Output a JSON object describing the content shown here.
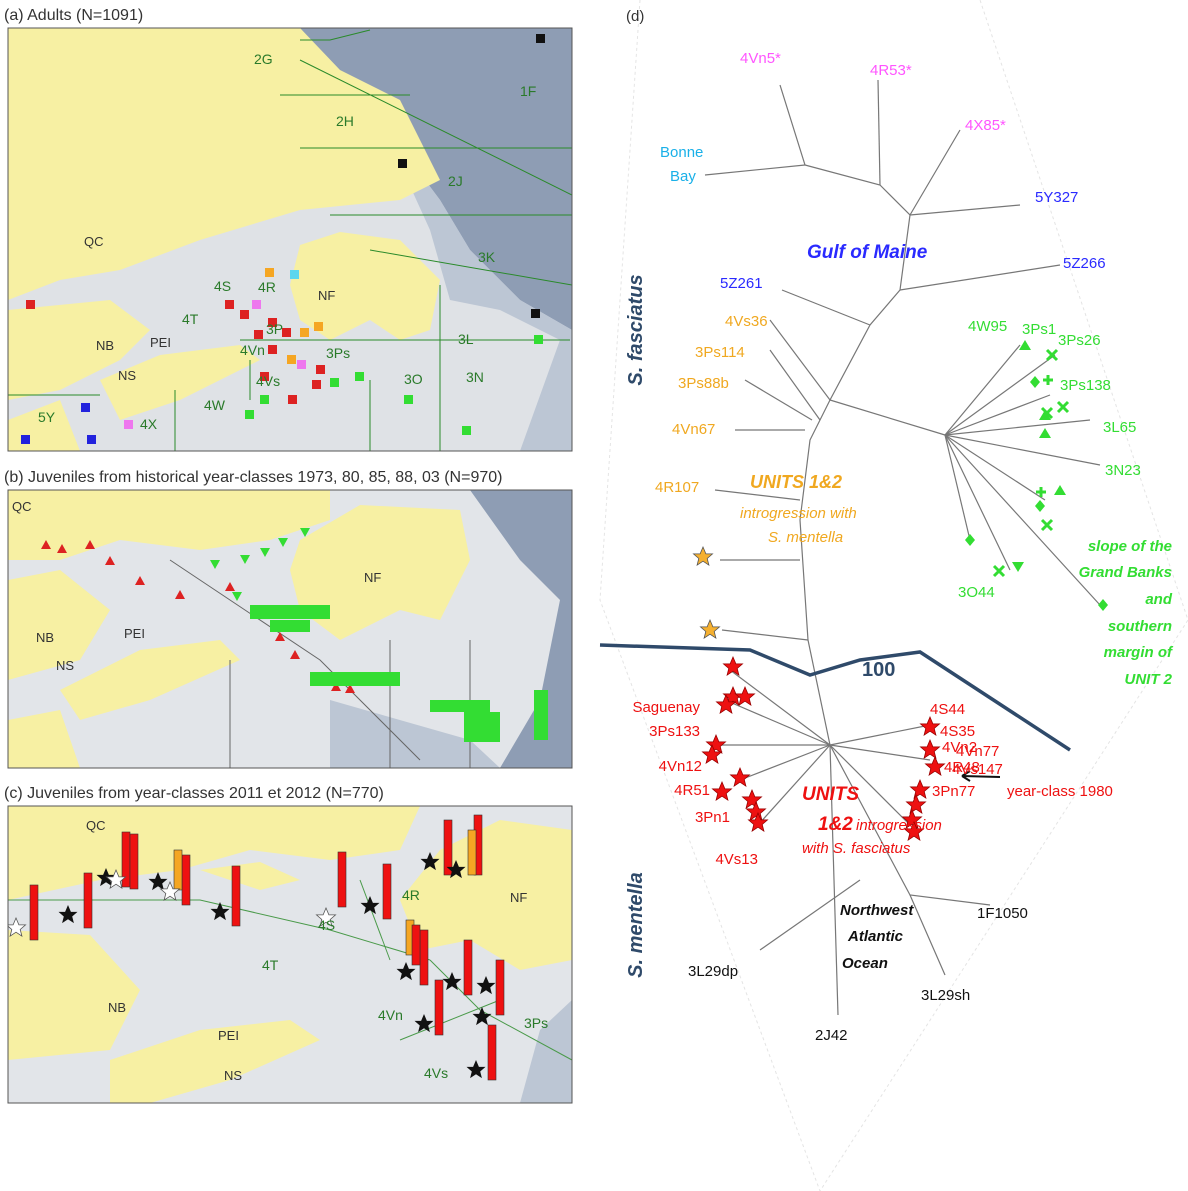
{
  "panel_a": {
    "title": "(a) Adults (N=1091)",
    "labels": {
      "g2": "2G",
      "f1": "1F",
      "h2": "2H",
      "j2": "2J",
      "qc": "QC",
      "k3": "3K",
      "s4": "4S",
      "r4": "4R",
      "nf": "NF",
      "t4": "4T",
      "pn3": "3P",
      "vn4": "4Vn",
      "ps3": "3Ps",
      "l3": "3L",
      "nb": "NB",
      "pei": "PEI",
      "ns": "NS",
      "vs4": "4Vs",
      "o3": "3O",
      "n3": "3N",
      "w4": "4W",
      "y5": "5Y",
      "x4": "4X"
    }
  },
  "panel_b": {
    "title": "(b) Juveniles from historical year-classes  1973, 80, 85, 88, 03 (N=970)",
    "labels": {
      "qc": "QC",
      "nf": "NF",
      "nb": "NB",
      "pei": "PEI",
      "ns": "NS"
    }
  },
  "panel_c": {
    "title": "(c) Juveniles from year-classes 2011 et 2012 (N=770)",
    "labels": {
      "qc": "QC",
      "r4": "4R",
      "nf": "NF",
      "s4": "4S",
      "t4": "4T",
      "nb": "NB",
      "pei": "PEI",
      "vn4": "4Vn",
      "ps3": "3Ps",
      "ns": "NS",
      "vs4": "4Vs"
    }
  },
  "panel_d": {
    "title": "(d)",
    "pink": [
      "4Vn5*",
      "4R53*",
      "4X85*"
    ],
    "bonne_bay": [
      "Bonne",
      "Bay"
    ],
    "blue": [
      "5Y327",
      "5Z266",
      "5Z261"
    ],
    "gulf_of_maine": "Gulf of Maine",
    "orange": [
      "4Vs36",
      "3Ps114",
      "3Ps88b",
      "4Vn67",
      "4R107"
    ],
    "units_orange": "UNITS 1&2",
    "introgression_mentella": [
      "introgression with",
      "S. mentella"
    ],
    "green": [
      "4W95",
      "3Ps1",
      "3Ps26",
      "3Ps138",
      "3L65",
      "3N23",
      "3O44"
    ],
    "slope": [
      "slope of the",
      "Grand Banks",
      "and",
      "southern",
      "margin of",
      "UNIT 2"
    ],
    "s_fasciatus": "S. fasciatus",
    "s_mentella": "S. mentella",
    "bootstrap": "100",
    "red_left": [
      "Saguenay",
      "3Ps133",
      "4Vn12",
      "4R51",
      "3Pn1",
      "4Vs13"
    ],
    "red_right": [
      "4S44",
      "4S35",
      "4Vn2",
      "4R48",
      "4Vn77",
      "4Vs147",
      "3Pn77"
    ],
    "year_class": "year-class 1980",
    "units_red": [
      "UNITS",
      "1&2"
    ],
    "introgression_fasciatus": [
      "introgression",
      "with S. fasciatus"
    ],
    "nwa": [
      "Northwest",
      "Atlantic",
      "Ocean"
    ],
    "black": [
      "1F1050",
      "3L29dp",
      "3L29sh",
      "2J42"
    ]
  }
}
